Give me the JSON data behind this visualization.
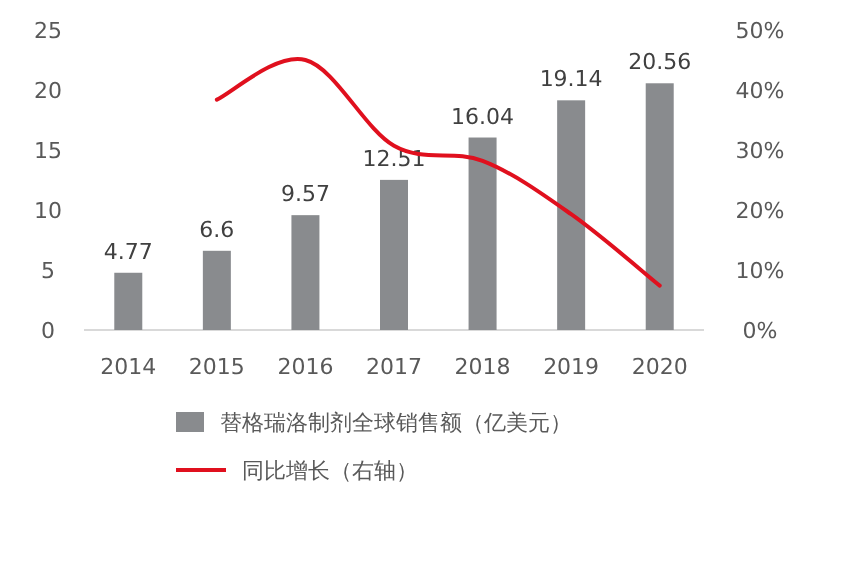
{
  "chart_data": {
    "type": "bar",
    "categories": [
      "2014",
      "2015",
      "2016",
      "2017",
      "2018",
      "2019",
      "2020"
    ],
    "series": [
      {
        "name": "替格瑞洛制剂全球销售额（亿美元）",
        "color": "#898b8e",
        "values": [
          4.77,
          6.6,
          9.57,
          12.51,
          16.04,
          19.14,
          20.56
        ],
        "data_labels": true
      },
      {
        "name": "同比增长（右轴）",
        "type": "line",
        "axis": "y2",
        "color": "#e0101e",
        "values": [
          null,
          38.4,
          45.0,
          30.7,
          28.2,
          19.3,
          7.4
        ]
      }
    ],
    "ylim": [
      0,
      25
    ],
    "yticks": [
      0,
      5,
      10,
      15,
      20,
      25
    ],
    "y2lim": [
      0,
      50
    ],
    "y2ticks": [
      {
        "value": 0,
        "label": "0%"
      },
      {
        "value": 10,
        "label": "10%"
      },
      {
        "value": 20,
        "label": "20%"
      },
      {
        "value": 30,
        "label": "30%"
      },
      {
        "value": 40,
        "label": "40%"
      },
      {
        "value": 50,
        "label": "50%"
      }
    ],
    "legend": "bottom",
    "grid": false,
    "marker": "none"
  }
}
